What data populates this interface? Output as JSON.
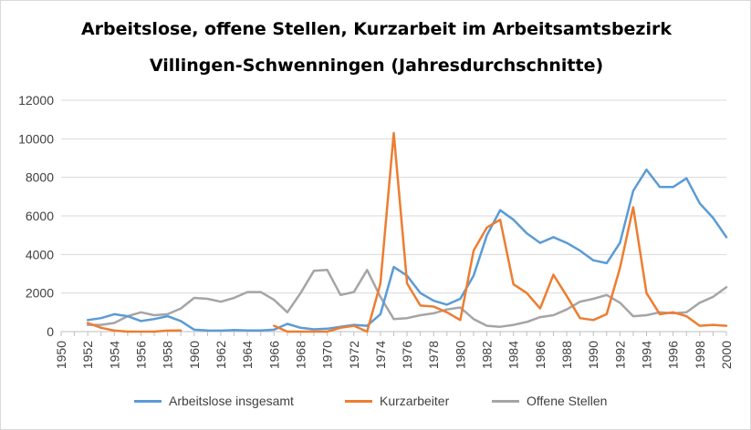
{
  "chart_data": {
    "type": "line",
    "title_line1": "Arbeitslose, offene Stellen, Kurzarbeit im Arbeitsamtsbezirk",
    "title_line2": "Villingen-Schwenningen (Jahresdurchschnitte)",
    "x_ticks": [
      "1950",
      "1952",
      "1954",
      "1956",
      "1958",
      "1960",
      "1962",
      "1964",
      "1966",
      "1968",
      "1970",
      "1972",
      "1974",
      "1976",
      "1978",
      "1980",
      "1982",
      "1984",
      "1986",
      "1988",
      "1990",
      "1992",
      "1994",
      "1996",
      "1998",
      "2000"
    ],
    "y_ticks": [
      "0",
      "2000",
      "4000",
      "6000",
      "8000",
      "10000",
      "12000"
    ],
    "xlim": [
      1950,
      2000
    ],
    "ylim": [
      0,
      12000
    ],
    "grid": "horizontal",
    "legend_position": "bottom",
    "series": [
      {
        "name": "Arbeitslose insgesamt",
        "color": "#5b9bd5",
        "x": [
          1952,
          1953,
          1954,
          1955,
          1956,
          1957,
          1958,
          1959,
          1960,
          1961,
          1962,
          1963,
          1964,
          1965,
          1966,
          1967,
          1968,
          1969,
          1970,
          1971,
          1972,
          1973,
          1974,
          1975,
          1976,
          1977,
          1978,
          1979,
          1980,
          1981,
          1982,
          1983,
          1984,
          1985,
          1986,
          1987,
          1988,
          1989,
          1990,
          1991,
          1992,
          1993,
          1994,
          1995,
          1996,
          1997,
          1998,
          1999,
          2000
        ],
        "y": [
          600,
          700,
          900,
          800,
          550,
          650,
          800,
          550,
          100,
          60,
          50,
          80,
          60,
          60,
          100,
          400,
          200,
          120,
          150,
          250,
          350,
          300,
          900,
          3350,
          2900,
          2000,
          1600,
          1400,
          1700,
          2900,
          5000,
          6300,
          5800,
          5100,
          4600,
          4900,
          4600,
          4200,
          3700,
          3550,
          4600,
          7300,
          8400,
          7500,
          7500,
          7950,
          6650,
          5900,
          4900
        ]
      },
      {
        "name": "Kurzarbeiter",
        "color": "#ed7d31",
        "segments": [
          {
            "x": [
              1952,
              1953,
              1954,
              1955,
              1956,
              1957,
              1958,
              1959
            ],
            "y": [
              450,
              200,
              50,
              0,
              0,
              0,
              50,
              60
            ]
          },
          {
            "x": [
              1966,
              1967,
              1968,
              1969,
              1970,
              1971,
              1972,
              1973,
              1974,
              1975,
              1976,
              1977,
              1978,
              1979,
              1980,
              1981,
              1982,
              1983,
              1984,
              1985,
              1986,
              1987,
              1988,
              1989,
              1990,
              1991,
              1992,
              1993,
              1994,
              1995,
              1996,
              1997,
              1998,
              1999,
              2000
            ],
            "y": [
              300,
              0,
              0,
              0,
              0,
              200,
              300,
              0,
              2500,
              10300,
              2500,
              1350,
              1300,
              1000,
              600,
              4200,
              5400,
              5800,
              2450,
              2000,
              1200,
              2950,
              1850,
              700,
              600,
              900,
              3300,
              6450,
              2000,
              900,
              1000,
              800,
              300,
              350,
              300
            ]
          }
        ]
      },
      {
        "name": "Offene Stellen",
        "color": "#a5a5a5",
        "x": [
          1952,
          1953,
          1954,
          1955,
          1956,
          1957,
          1958,
          1959,
          1960,
          1961,
          1962,
          1963,
          1964,
          1965,
          1966,
          1967,
          1968,
          1969,
          1970,
          1971,
          1972,
          1973,
          1974,
          1975,
          1976,
          1977,
          1978,
          1979,
          1980,
          1981,
          1982,
          1983,
          1984,
          1985,
          1986,
          1987,
          1988,
          1989,
          1990,
          1991,
          1992,
          1993,
          1994,
          1995,
          1996,
          1997,
          1998,
          1999,
          2000
        ],
        "y": [
          350,
          350,
          450,
          800,
          1000,
          850,
          900,
          1200,
          1750,
          1700,
          1550,
          1750,
          2050,
          2050,
          1650,
          1000,
          2000,
          3150,
          3200,
          1900,
          2050,
          3200,
          1800,
          650,
          700,
          850,
          950,
          1150,
          1250,
          650,
          300,
          250,
          350,
          500,
          750,
          850,
          1150,
          1550,
          1700,
          1900,
          1500,
          800,
          850,
          1000,
          950,
          1000,
          1500,
          1800,
          2300
        ]
      }
    ]
  }
}
